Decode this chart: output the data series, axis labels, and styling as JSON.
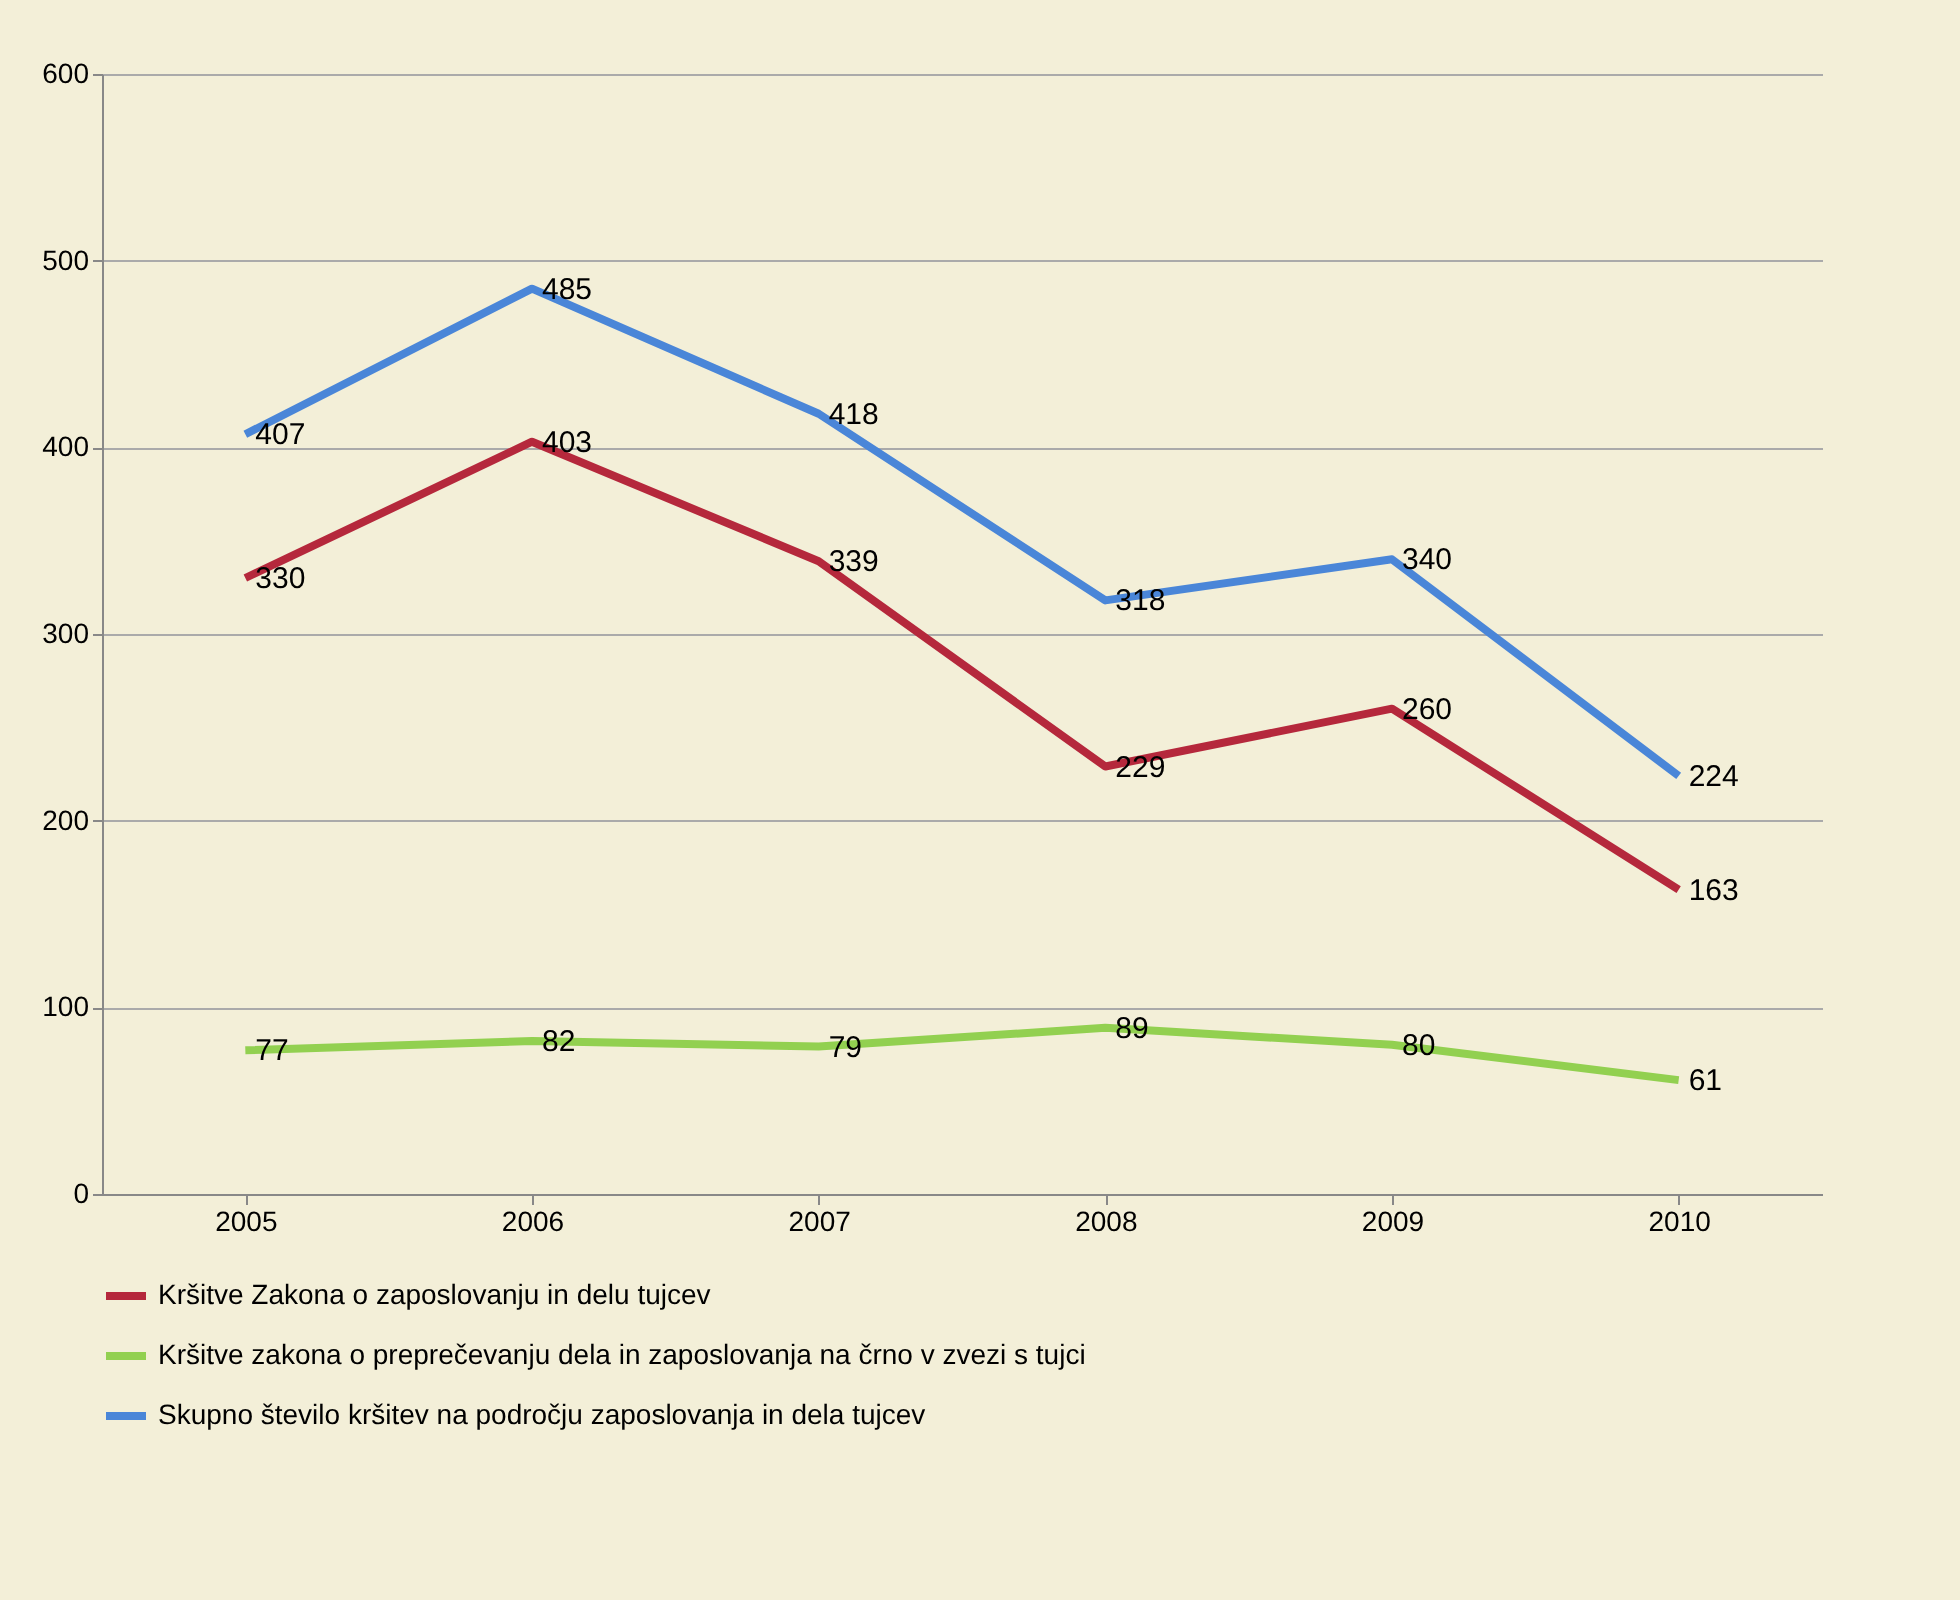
{
  "chart_data": {
    "type": "line",
    "categories": [
      "2005",
      "2006",
      "2007",
      "2008",
      "2009",
      "2010"
    ],
    "series": [
      {
        "name": "Kršitve Zakona o zaposlovanju in delu tujcev",
        "color": "#b5283c",
        "values": [
          330,
          403,
          339,
          229,
          260,
          163
        ]
      },
      {
        "name": "Kršitve zakona o preprečevanju dela in zaposlovanja na črno v zvezi s tujci",
        "color": "#92d050",
        "values": [
          77,
          82,
          79,
          89,
          80,
          61
        ]
      },
      {
        "name": "Skupno število kršitev na področju zaposlovanja in dela tujcev",
        "color": "#4a86d8",
        "values": [
          407,
          485,
          418,
          318,
          340,
          224
        ]
      }
    ],
    "ylim": [
      0,
      600
    ],
    "yticks": [
      0,
      100,
      200,
      300,
      400,
      500,
      600
    ],
    "grid": "y",
    "legend": "bottom",
    "data_labels": true
  }
}
